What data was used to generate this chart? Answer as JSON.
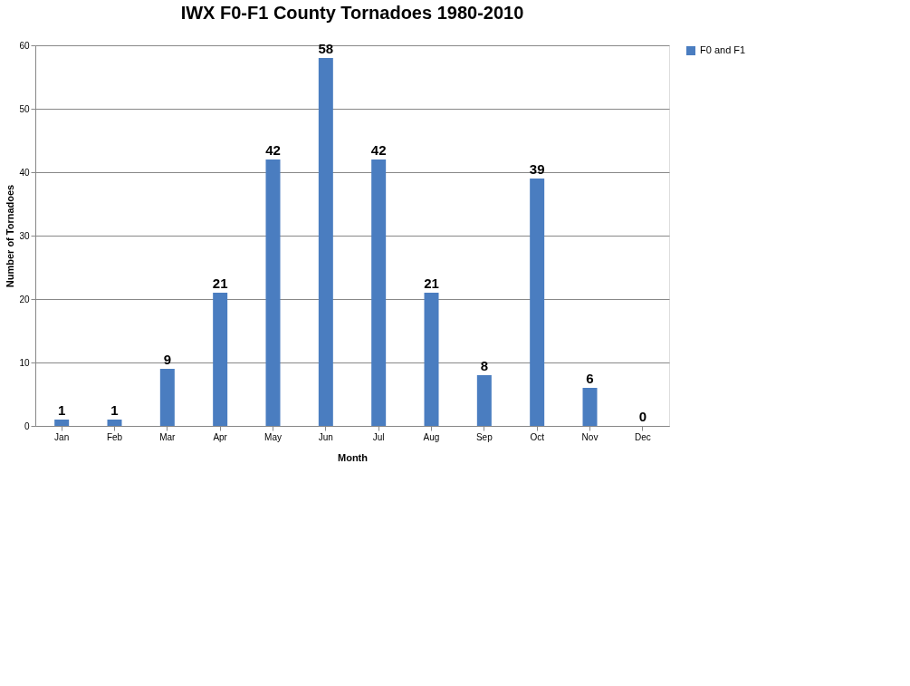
{
  "chart_data": {
    "type": "bar",
    "title": "IWX F0-F1 County Tornadoes 1980-2010",
    "xlabel": "Month",
    "ylabel": "Number of Tornadoes",
    "categories": [
      "Jan",
      "Feb",
      "Mar",
      "Apr",
      "May",
      "Jun",
      "Jul",
      "Aug",
      "Sep",
      "Oct",
      "Nov",
      "Dec"
    ],
    "series": [
      {
        "name": "F0 and F1",
        "color": "#4a7dc0",
        "values": [
          1,
          1,
          9,
          21,
          42,
          58,
          42,
          21,
          8,
          39,
          6,
          0
        ]
      }
    ],
    "ylim": [
      0,
      60
    ],
    "yticks": [
      0,
      10,
      20,
      30,
      40,
      50,
      60
    ],
    "grid": "y",
    "legend": "right",
    "data_labels": true
  }
}
